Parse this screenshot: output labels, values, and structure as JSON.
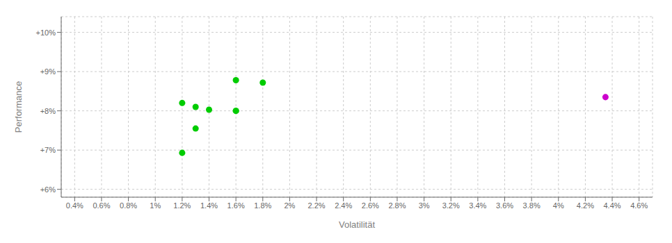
{
  "chart_data": {
    "type": "scatter",
    "xlabel": "Volatilität",
    "ylabel": "Performance",
    "xlim": [
      0.003,
      0.047
    ],
    "ylim": [
      0.058,
      0.104
    ],
    "xticks": [
      {
        "value": 0.004,
        "label": "0.4%"
      },
      {
        "value": 0.006,
        "label": "0.6%"
      },
      {
        "value": 0.008,
        "label": "0.8%"
      },
      {
        "value": 0.01,
        "label": "1%"
      },
      {
        "value": 0.012,
        "label": "1.2%"
      },
      {
        "value": 0.014,
        "label": "1.4%"
      },
      {
        "value": 0.016,
        "label": "1.6%"
      },
      {
        "value": 0.018,
        "label": "1.8%"
      },
      {
        "value": 0.02,
        "label": "2%"
      },
      {
        "value": 0.022,
        "label": "2.2%"
      },
      {
        "value": 0.024,
        "label": "2.4%"
      },
      {
        "value": 0.026,
        "label": "2.6%"
      },
      {
        "value": 0.028,
        "label": "2.8%"
      },
      {
        "value": 0.03,
        "label": "3%"
      },
      {
        "value": 0.032,
        "label": "3.2%"
      },
      {
        "value": 0.034,
        "label": "3.4%"
      },
      {
        "value": 0.036,
        "label": "3.6%"
      },
      {
        "value": 0.038,
        "label": "3.8%"
      },
      {
        "value": 0.04,
        "label": "4%"
      },
      {
        "value": 0.042,
        "label": "4.2%"
      },
      {
        "value": 0.044,
        "label": "4.4%"
      },
      {
        "value": 0.046,
        "label": "4.6%"
      }
    ],
    "yticks": [
      {
        "value": 0.06,
        "label": "+6%"
      },
      {
        "value": 0.07,
        "label": "+7%"
      },
      {
        "value": 0.08,
        "label": "+8%"
      },
      {
        "value": 0.09,
        "label": "+9%"
      },
      {
        "value": 0.1,
        "label": "+10%"
      }
    ],
    "grid": true,
    "series": [
      {
        "color": "#00cc00",
        "x": [
          0.012,
          0.013,
          0.014,
          0.016,
          0.016,
          0.018,
          0.016,
          0.013,
          0.012
        ],
        "values": [
          0.082,
          0.081,
          0.0803,
          0.08,
          0.0878,
          0.0872,
          0.08,
          0.0755,
          0.0693
        ]
      },
      {
        "color": "#cc00cc",
        "x": [
          0.0435
        ],
        "values": [
          0.0835
        ]
      }
    ]
  }
}
